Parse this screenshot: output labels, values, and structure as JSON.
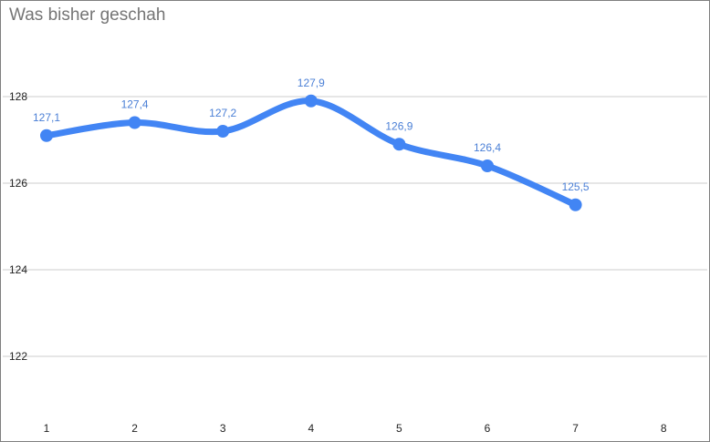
{
  "chart_data": {
    "type": "line",
    "title": "Was bisher geschah",
    "xlabel": "",
    "ylabel": "",
    "x": [
      1,
      2,
      3,
      4,
      5,
      6,
      7
    ],
    "x_ticks": [
      "1",
      "2",
      "3",
      "4",
      "5",
      "6",
      "7",
      "8"
    ],
    "series": [
      {
        "values": [
          127.1,
          127.4,
          127.2,
          127.9,
          126.9,
          126.4,
          125.5
        ],
        "labels": [
          "127,1",
          "127,4",
          "127,2",
          "127,9",
          "126,9",
          "126,4",
          "125,5"
        ],
        "color": "#4285f4"
      }
    ],
    "y_ticks": [
      "128",
      "126",
      "124",
      "122"
    ],
    "ylim": [
      120,
      129
    ],
    "xlim": [
      1,
      8
    ],
    "grid": true,
    "data_label_color": "#4a7fd6"
  }
}
